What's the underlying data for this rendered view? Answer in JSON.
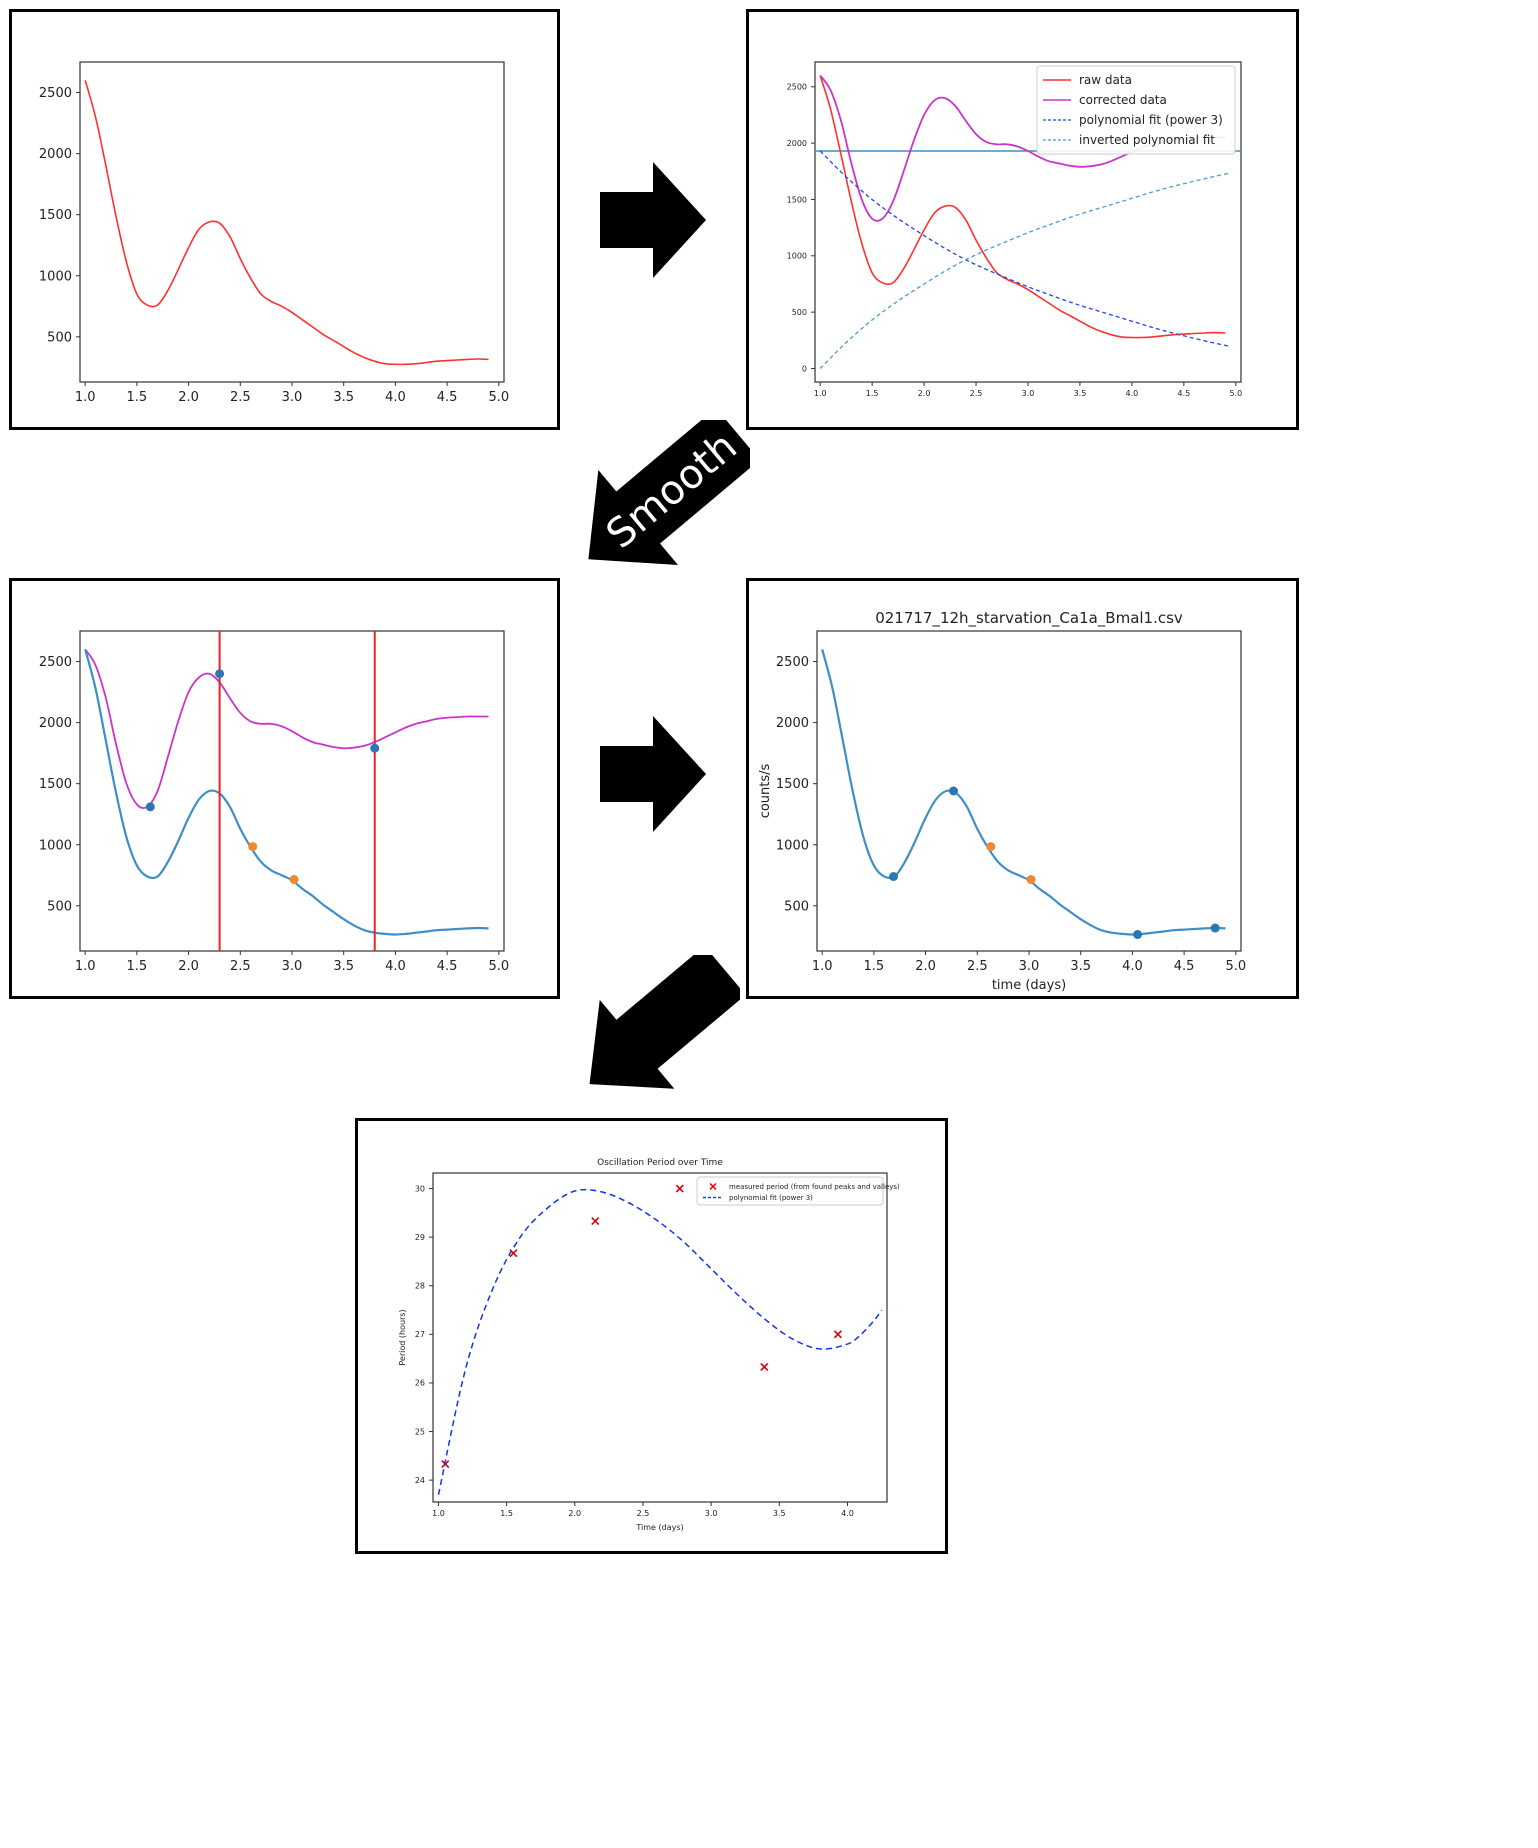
{
  "pipeline": {
    "smooth_label": "Smooth"
  },
  "colors": {
    "raw": "#ff3030",
    "corrected": "#cc33cc",
    "poly": "#2244ee",
    "inverted": "#4a9ad4",
    "smoothed": "#3d8ec9",
    "peak_marker": "#2a77b4",
    "inflection_marker": "#ee8833",
    "vline": "#ee2222",
    "hline": "#3d8ec9",
    "period_marker": "#dd0000",
    "period_fit": "#1133ee"
  },
  "charts": [
    {
      "id": "raw",
      "chart_data": {
        "type": "line",
        "title": "",
        "xlabel": "",
        "ylabel": "",
        "xlim": [
          0.95,
          5.05
        ],
        "ylim": [
          130,
          2750
        ],
        "xticks": [
          "1.0",
          "1.5",
          "2.0",
          "2.5",
          "3.0",
          "3.5",
          "4.0",
          "4.5",
          "5.0"
        ],
        "yticks": [
          "500",
          "1000",
          "1500",
          "2000",
          "2500"
        ],
        "series": [
          {
            "role": "raw",
            "x": [
              1.0,
              1.1,
              1.2,
              1.3,
              1.4,
              1.5,
              1.6,
              1.7,
              1.8,
              1.9,
              2.0,
              2.1,
              2.2,
              2.3,
              2.4,
              2.5,
              2.6,
              2.7,
              2.8,
              2.9,
              3.0,
              3.1,
              3.2,
              3.3,
              3.4,
              3.5,
              3.6,
              3.7,
              3.8,
              3.9,
              4.0,
              4.1,
              4.2,
              4.3,
              4.4,
              4.5,
              4.6,
              4.7,
              4.8,
              4.9
            ],
            "y": [
              2600,
              2300,
              1900,
              1480,
              1110,
              850,
              760,
              760,
              880,
              1050,
              1230,
              1380,
              1440,
              1430,
              1320,
              1140,
              980,
              850,
              790,
              750,
              700,
              640,
              580,
              520,
              470,
              420,
              370,
              330,
              300,
              280,
              275,
              275,
              280,
              290,
              300,
              305,
              310,
              315,
              318,
              315
            ]
          }
        ]
      }
    },
    {
      "id": "corrected",
      "chart_data": {
        "type": "line",
        "title": "",
        "xlabel": "",
        "ylabel": "",
        "xlim": [
          0.95,
          5.05
        ],
        "ylim": [
          -120,
          2720
        ],
        "xticks": [
          "1.0",
          "1.5",
          "2.0",
          "2.5",
          "3.0",
          "3.5",
          "4.0",
          "4.5",
          "5.0"
        ],
        "yticks": [
          "0",
          "500",
          "1000",
          "1500",
          "2000",
          "2500"
        ],
        "legend": [
          "raw data",
          "corrected data",
          "polynomial fit (power 3)",
          "inverted polynomial fit"
        ],
        "legend_position": "top-right",
        "hline": 1930,
        "series": [
          {
            "name": "raw data",
            "role": "raw",
            "x": [
              1.0,
              1.1,
              1.2,
              1.3,
              1.4,
              1.5,
              1.6,
              1.7,
              1.8,
              1.9,
              2.0,
              2.1,
              2.2,
              2.3,
              2.4,
              2.5,
              2.6,
              2.7,
              2.8,
              2.9,
              3.0,
              3.1,
              3.2,
              3.3,
              3.4,
              3.5,
              3.6,
              3.7,
              3.8,
              3.9,
              4.0,
              4.1,
              4.2,
              4.3,
              4.4,
              4.5,
              4.6,
              4.7,
              4.8,
              4.9
            ],
            "y": [
              2600,
              2300,
              1900,
              1480,
              1110,
              850,
              760,
              760,
              880,
              1050,
              1230,
              1380,
              1440,
              1430,
              1320,
              1140,
              980,
              850,
              790,
              750,
              700,
              640,
              580,
              520,
              470,
              420,
              370,
              330,
              300,
              280,
              275,
              275,
              280,
              290,
              300,
              305,
              310,
              315,
              318,
              315
            ]
          },
          {
            "name": "corrected data",
            "role": "corrected",
            "x": [
              1.0,
              1.1,
              1.2,
              1.3,
              1.4,
              1.5,
              1.6,
              1.7,
              1.8,
              1.9,
              2.0,
              2.1,
              2.2,
              2.3,
              2.4,
              2.5,
              2.6,
              2.7,
              2.8,
              2.9,
              3.0,
              3.1,
              3.2,
              3.3,
              3.4,
              3.5,
              3.6,
              3.7,
              3.8,
              3.9,
              4.0,
              4.1,
              4.2,
              4.3,
              4.4,
              4.5,
              4.6,
              4.7,
              4.8,
              4.9
            ],
            "y": [
              2600,
              2470,
              2200,
              1820,
              1500,
              1330,
              1330,
              1480,
              1740,
              2020,
              2250,
              2380,
              2400,
              2330,
              2200,
              2080,
              2010,
              1990,
              1990,
              1970,
              1930,
              1880,
              1840,
              1820,
              1800,
              1790,
              1795,
              1810,
              1840,
              1880,
              1920,
              1960,
              1990,
              2010,
              2030,
              2040,
              2045,
              2050,
              2050,
              2050
            ]
          },
          {
            "name": "polynomial fit (power 3)",
            "role": "poly",
            "x": [
              1.0,
              1.25,
              1.5,
              1.75,
              2.0,
              2.25,
              2.5,
              2.75,
              3.0,
              3.25,
              3.5,
              3.75,
              4.0,
              4.25,
              4.5,
              4.75,
              4.95
            ],
            "y": [
              1930,
              1700,
              1500,
              1330,
              1180,
              1040,
              920,
              820,
              725,
              640,
              560,
              490,
              420,
              350,
              290,
              235,
              195
            ]
          },
          {
            "name": "inverted polynomial fit",
            "role": "inverted",
            "x": [
              1.0,
              1.25,
              1.5,
              1.75,
              2.0,
              2.25,
              2.5,
              2.75,
              3.0,
              3.25,
              3.5,
              3.75,
              4.0,
              4.25,
              4.5,
              4.75,
              4.95
            ],
            "y": [
              0,
              230,
              430,
              600,
              750,
              890,
              1010,
              1110,
              1205,
              1290,
              1370,
              1440,
              1510,
              1580,
              1640,
              1695,
              1735
            ]
          }
        ]
      }
    },
    {
      "id": "smoothed",
      "chart_data": {
        "type": "line",
        "title": "",
        "xlabel": "",
        "ylabel": "",
        "xlim": [
          0.95,
          5.05
        ],
        "ylim": [
          130,
          2750
        ],
        "xticks": [
          "1.0",
          "1.5",
          "2.0",
          "2.5",
          "3.0",
          "3.5",
          "4.0",
          "4.5",
          "5.0"
        ],
        "yticks": [
          "500",
          "1000",
          "1500",
          "2000",
          "2500"
        ],
        "vlines": [
          2.3,
          3.8
        ],
        "series": [
          {
            "role": "corrected",
            "x": [
              1.0,
              1.1,
              1.2,
              1.3,
              1.4,
              1.5,
              1.6,
              1.7,
              1.8,
              1.9,
              2.0,
              2.1,
              2.2,
              2.3,
              2.4,
              2.5,
              2.6,
              2.7,
              2.8,
              2.9,
              3.0,
              3.1,
              3.2,
              3.3,
              3.4,
              3.5,
              3.6,
              3.7,
              3.8,
              3.9,
              4.0,
              4.1,
              4.2,
              4.3,
              4.4,
              4.5,
              4.6,
              4.7,
              4.8,
              4.9
            ],
            "y": [
              2600,
              2470,
              2200,
              1820,
              1500,
              1330,
              1310,
              1440,
              1720,
              2010,
              2250,
              2370,
              2400,
              2330,
              2200,
              2080,
              2010,
              1990,
              1990,
              1970,
              1930,
              1880,
              1840,
              1820,
              1800,
              1790,
              1795,
              1810,
              1840,
              1880,
              1920,
              1960,
              1990,
              2010,
              2030,
              2040,
              2045,
              2050,
              2050,
              2050
            ]
          },
          {
            "role": "smoothed",
            "x": [
              1.0,
              1.1,
              1.2,
              1.3,
              1.4,
              1.5,
              1.6,
              1.7,
              1.8,
              1.9,
              2.0,
              2.1,
              2.2,
              2.3,
              2.4,
              2.5,
              2.6,
              2.7,
              2.8,
              2.9,
              3.0,
              3.1,
              3.2,
              3.3,
              3.4,
              3.5,
              3.6,
              3.7,
              3.8,
              3.9,
              4.0,
              4.1,
              4.2,
              4.3,
              4.4,
              4.5,
              4.6,
              4.7,
              4.8,
              4.9
            ],
            "y": [
              2600,
              2280,
              1850,
              1420,
              1060,
              830,
              740,
              740,
              860,
              1030,
              1220,
              1370,
              1440,
              1420,
              1310,
              1130,
              980,
              860,
              790,
              750,
              710,
              640,
              580,
              510,
              450,
              390,
              340,
              300,
              280,
              270,
              265,
              270,
              280,
              290,
              300,
              305,
              310,
              315,
              318,
              315
            ]
          }
        ],
        "markers": [
          {
            "role": "peak",
            "x": 1.63,
            "y": 1310
          },
          {
            "role": "peak",
            "x": 2.3,
            "y": 2400
          },
          {
            "role": "peak",
            "x": 3.8,
            "y": 1790
          },
          {
            "role": "inflection",
            "x": 2.62,
            "y": 985
          },
          {
            "role": "inflection",
            "x": 3.02,
            "y": 715
          }
        ]
      }
    },
    {
      "id": "final",
      "chart_data": {
        "type": "line",
        "title": "021717_12h_starvation_Ca1a_Bmal1.csv",
        "xlabel": "time (days)",
        "ylabel": "counts/s",
        "xlim": [
          0.95,
          5.05
        ],
        "ylim": [
          130,
          2750
        ],
        "xticks": [
          "1.0",
          "1.5",
          "2.0",
          "2.5",
          "3.0",
          "3.5",
          "4.0",
          "4.5",
          "5.0"
        ],
        "yticks": [
          "500",
          "1000",
          "1500",
          "2000",
          "2500"
        ],
        "series": [
          {
            "role": "smoothed",
            "x": [
              1.0,
              1.1,
              1.2,
              1.3,
              1.4,
              1.5,
              1.6,
              1.7,
              1.8,
              1.9,
              2.0,
              2.1,
              2.2,
              2.3,
              2.4,
              2.5,
              2.6,
              2.7,
              2.8,
              2.9,
              3.0,
              3.1,
              3.2,
              3.3,
              3.4,
              3.5,
              3.6,
              3.7,
              3.8,
              3.9,
              4.0,
              4.1,
              4.2,
              4.3,
              4.4,
              4.5,
              4.6,
              4.7,
              4.8,
              4.9
            ],
            "y": [
              2600,
              2280,
              1850,
              1420,
              1060,
              830,
              740,
              740,
              860,
              1030,
              1220,
              1370,
              1440,
              1420,
              1310,
              1130,
              980,
              860,
              790,
              750,
              710,
              640,
              580,
              510,
              450,
              390,
              340,
              300,
              280,
              270,
              265,
              270,
              280,
              290,
              300,
              305,
              310,
              315,
              318,
              315
            ]
          }
        ],
        "markers": [
          {
            "role": "peak",
            "x": 1.69,
            "y": 740
          },
          {
            "role": "peak",
            "x": 2.27,
            "y": 1440
          },
          {
            "role": "peak",
            "x": 4.05,
            "y": 265
          },
          {
            "role": "peak",
            "x": 4.8,
            "y": 318
          },
          {
            "role": "inflection",
            "x": 2.63,
            "y": 985
          },
          {
            "role": "inflection",
            "x": 3.02,
            "y": 715
          }
        ]
      }
    },
    {
      "id": "period",
      "chart_data": {
        "type": "scatter",
        "title": "Oscillation Period over Time",
        "xlabel": "Time (days)",
        "ylabel": "Period (hours)",
        "xlim": [
          0.96,
          4.29
        ],
        "ylim": [
          23.55,
          30.32
        ],
        "xticks": [
          "1.0",
          "1.5",
          "2.0",
          "2.5",
          "3.0",
          "3.5",
          "4.0"
        ],
        "yticks": [
          "24",
          "25",
          "26",
          "27",
          "28",
          "29",
          "30"
        ],
        "legend": [
          "measured period (from found peaks and valleys)",
          "polynomial fit (power 3)"
        ],
        "legend_position": "top-right",
        "series": [
          {
            "name": "measured period (from found peaks and valleys)",
            "role": "measured",
            "x": [
              1.05,
              1.55,
              2.15,
              2.77,
              3.39,
              3.93
            ],
            "y": [
              24.33,
              28.67,
              29.33,
              30.0,
              26.33,
              27.0
            ]
          },
          {
            "name": "polynomial fit (power 3)",
            "role": "fit",
            "x": [
              1.0,
              1.2,
              1.4,
              1.6,
              1.8,
              2.0,
              2.2,
              2.4,
              2.6,
              2.8,
              3.0,
              3.2,
              3.4,
              3.6,
              3.8,
              4.0,
              4.1,
              4.2,
              4.25
            ],
            "y": [
              23.7,
              26.3,
              27.95,
              29.0,
              29.6,
              29.95,
              29.93,
              29.7,
              29.35,
              28.9,
              28.35,
              27.8,
              27.3,
              26.9,
              26.7,
              26.8,
              27.0,
              27.3,
              27.5
            ]
          }
        ]
      }
    }
  ]
}
